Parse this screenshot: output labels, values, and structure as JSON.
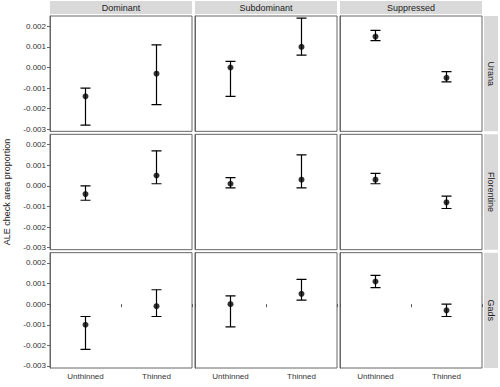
{
  "chart_data": {
    "type": "scatter",
    "ylabel": "ALE check area proportion",
    "categories": [
      "Unthinned",
      "Thinned"
    ],
    "columns": [
      "Dominant",
      "Subdominant",
      "Suppressed"
    ],
    "rows": [
      "Urana",
      "Florentine",
      "Gads"
    ],
    "color": "#000000",
    "marker": "circle",
    "grid": false,
    "ylim": [
      -0.0031,
      0.0025
    ],
    "yticks": [
      -0.003,
      -0.002,
      -0.001,
      {
        "value": 0,
        "label": "0.000"
      },
      0.001,
      0.002
    ],
    "panels": [
      {
        "row": "Urana",
        "column": "Dominant",
        "values": [
          -0.0014,
          -0.0003
        ],
        "lower": [
          -0.0028,
          -0.0018
        ],
        "upper": [
          -0.001,
          0.0011
        ]
      },
      {
        "row": "Urana",
        "column": "Subdominant",
        "values": [
          0.0,
          0.001
        ],
        "lower": [
          -0.0014,
          0.0006
        ],
        "upper": [
          0.0003,
          0.0024
        ]
      },
      {
        "row": "Urana",
        "column": "Suppressed",
        "values": [
          0.0015,
          -0.0005
        ],
        "lower": [
          0.0013,
          -0.0007
        ],
        "upper": [
          0.0018,
          -0.0002
        ]
      },
      {
        "row": "Florentine",
        "column": "Dominant",
        "values": [
          -0.0004,
          0.0005
        ],
        "lower": [
          -0.0007,
          0.0001
        ],
        "upper": [
          0.0,
          0.0017
        ]
      },
      {
        "row": "Florentine",
        "column": "Subdominant",
        "values": [
          0.0001,
          0.0003
        ],
        "lower": [
          -0.0001,
          -0.0001
        ],
        "upper": [
          0.0004,
          0.0015
        ]
      },
      {
        "row": "Florentine",
        "column": "Suppressed",
        "values": [
          0.0003,
          -0.0008
        ],
        "lower": [
          0.0001,
          -0.0011
        ],
        "upper": [
          0.0006,
          -0.0005
        ]
      },
      {
        "row": "Gads",
        "column": "Dominant",
        "values": [
          -0.001,
          -0.0001
        ],
        "lower": [
          -0.0022,
          -0.0006
        ],
        "upper": [
          -0.0006,
          0.0007
        ]
      },
      {
        "row": "Gads",
        "column": "Subdominant",
        "values": [
          0.0,
          0.0005
        ],
        "lower": [
          -0.0011,
          0.0002
        ],
        "upper": [
          0.0004,
          0.0012
        ]
      },
      {
        "row": "Gads",
        "column": "Suppressed",
        "values": [
          0.0011,
          -0.0003
        ],
        "lower": [
          0.0008,
          -0.0006
        ],
        "upper": [
          0.0014,
          0.0
        ]
      }
    ]
  }
}
